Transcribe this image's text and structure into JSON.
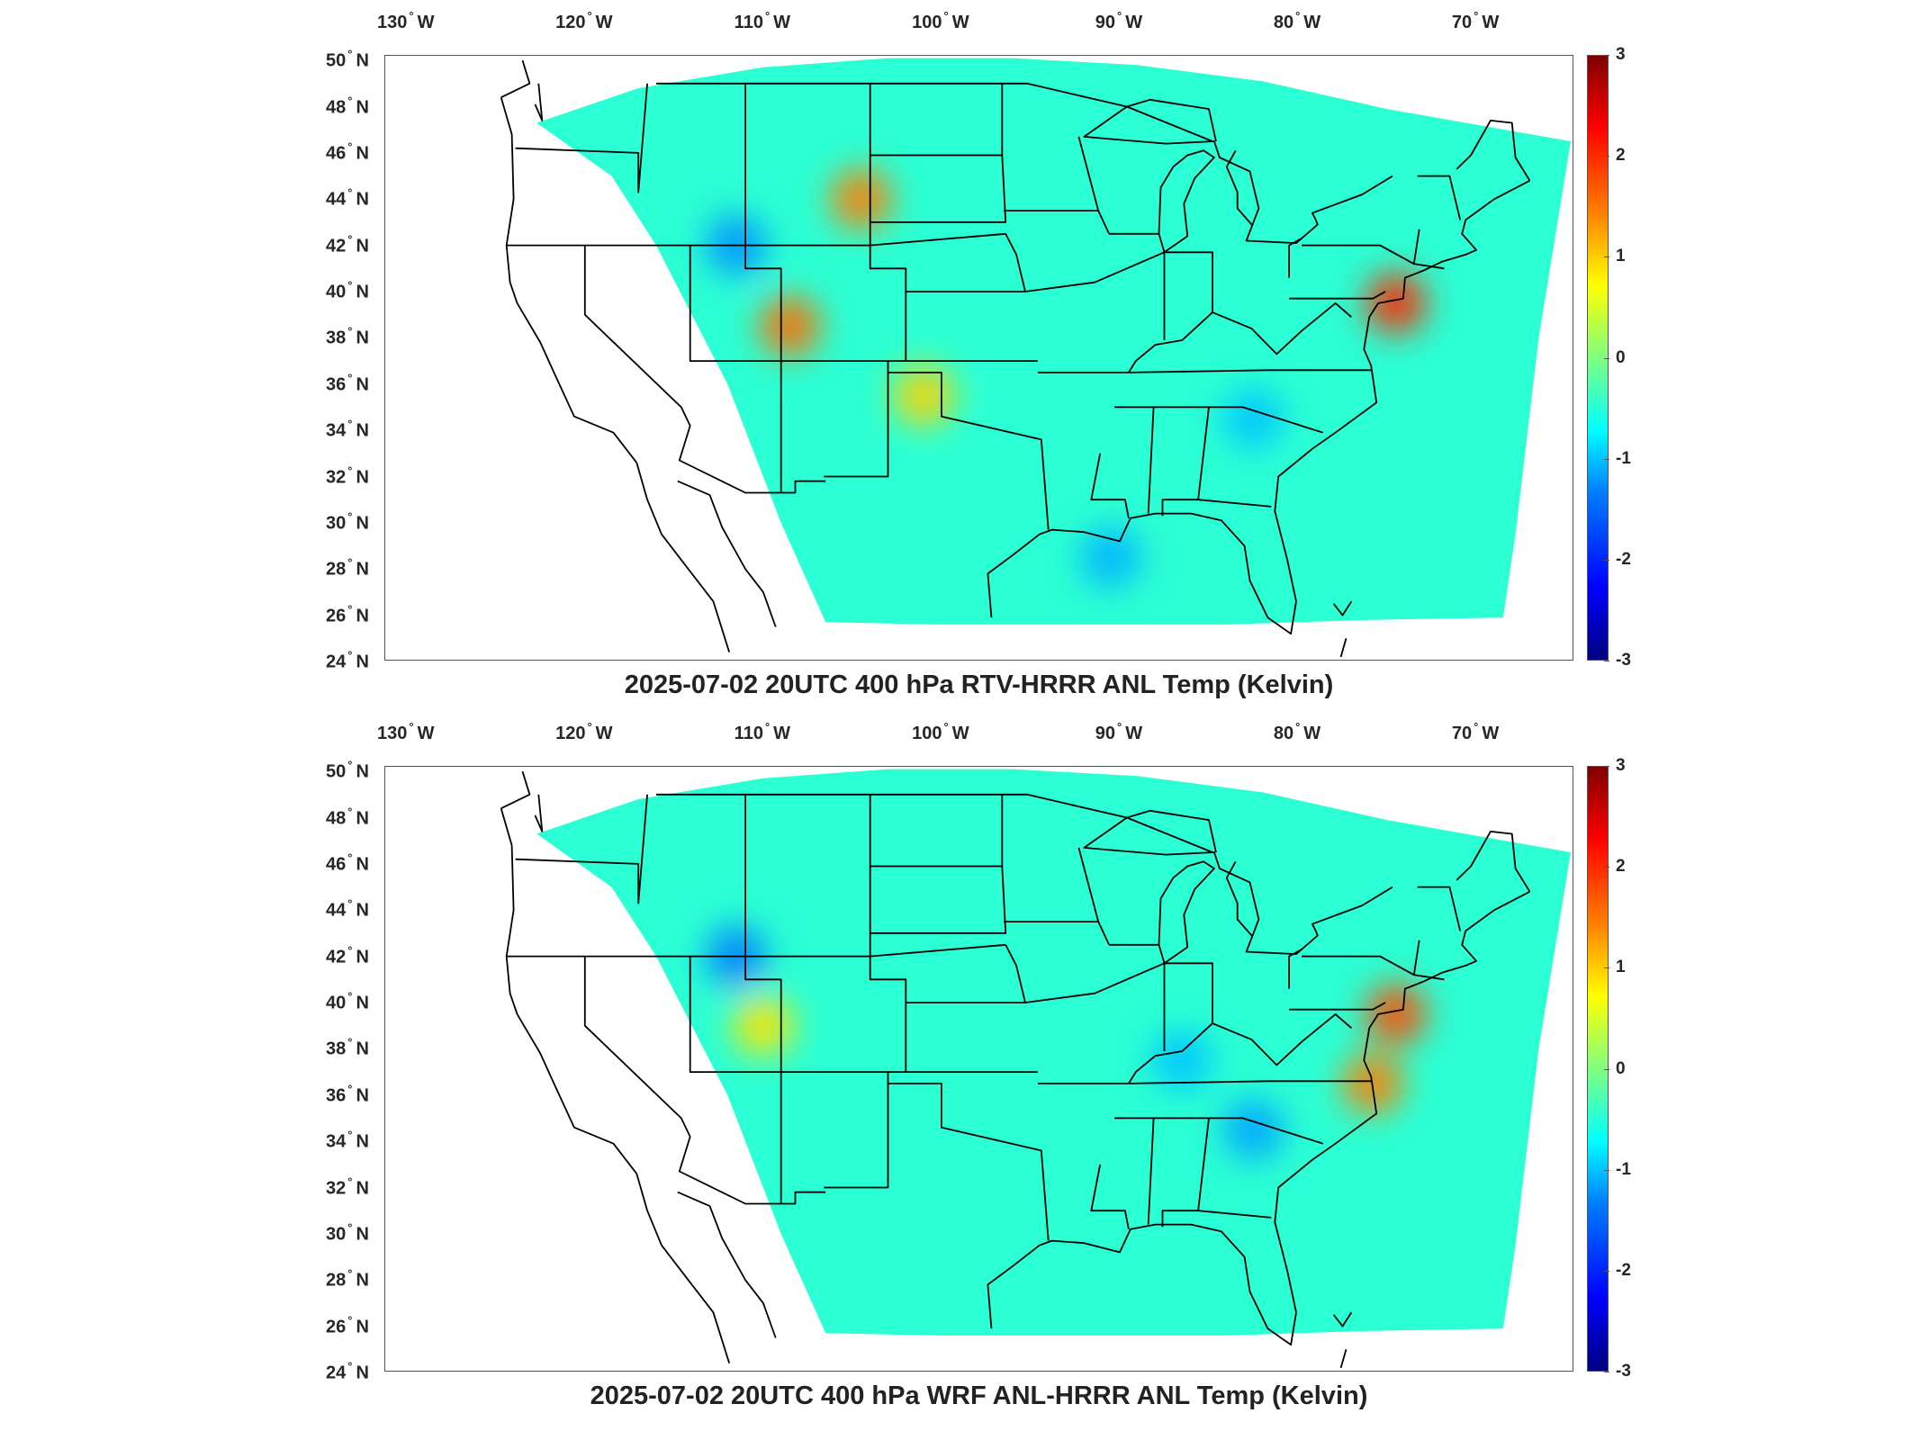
{
  "panels": [
    {
      "id": "top",
      "caption": "2025-07-02 20UTC 400 hPa RTV-HRRR ANL Temp (Kelvin)",
      "hotspots": [
        {
          "lon": -74.5,
          "lat": 39.5,
          "value": 2.0
        },
        {
          "lon": -108.5,
          "lat": 38.5,
          "value": 1.6
        },
        {
          "lon": -104.5,
          "lat": 44.0,
          "value": 1.5
        },
        {
          "lon": -101.0,
          "lat": 35.5,
          "value": 1.0
        },
        {
          "lon": -111.5,
          "lat": 42.0,
          "value": -1.4
        },
        {
          "lon": -90.5,
          "lat": 28.5,
          "value": -1.2
        },
        {
          "lon": -82.5,
          "lat": 34.5,
          "value": -1.1
        }
      ]
    },
    {
      "id": "bottom",
      "caption": "2025-07-02 20UTC 400 hPa WRF ANL-HRRR ANL Temp (Kelvin)",
      "hotspots": [
        {
          "lon": -74.5,
          "lat": 39.5,
          "value": 1.8
        },
        {
          "lon": -110.0,
          "lat": 39.0,
          "value": 0.9
        },
        {
          "lon": -75.8,
          "lat": 36.5,
          "value": 1.5
        },
        {
          "lon": -111.5,
          "lat": 42.0,
          "value": -1.5
        },
        {
          "lon": -82.5,
          "lat": 34.5,
          "value": -1.3
        },
        {
          "lon": -86.5,
          "lat": 37.5,
          "value": -1.1
        }
      ]
    }
  ],
  "axes": {
    "lon_ticks": [
      "130",
      "120",
      "110",
      "100",
      "90",
      "80",
      "70"
    ],
    "lon_hemisphere": "W",
    "lat_ticks": [
      "24",
      "26",
      "28",
      "30",
      "32",
      "34",
      "36",
      "38",
      "40",
      "42",
      "44",
      "46",
      "48",
      "50"
    ],
    "lat_hemisphere": "N",
    "degree_symbol": "°"
  },
  "colorbar": {
    "ticks": [
      "3",
      "2",
      "1",
      "0",
      "-1",
      "-2",
      "-3"
    ],
    "range": [
      -3,
      3
    ],
    "colormap": "jet"
  }
}
